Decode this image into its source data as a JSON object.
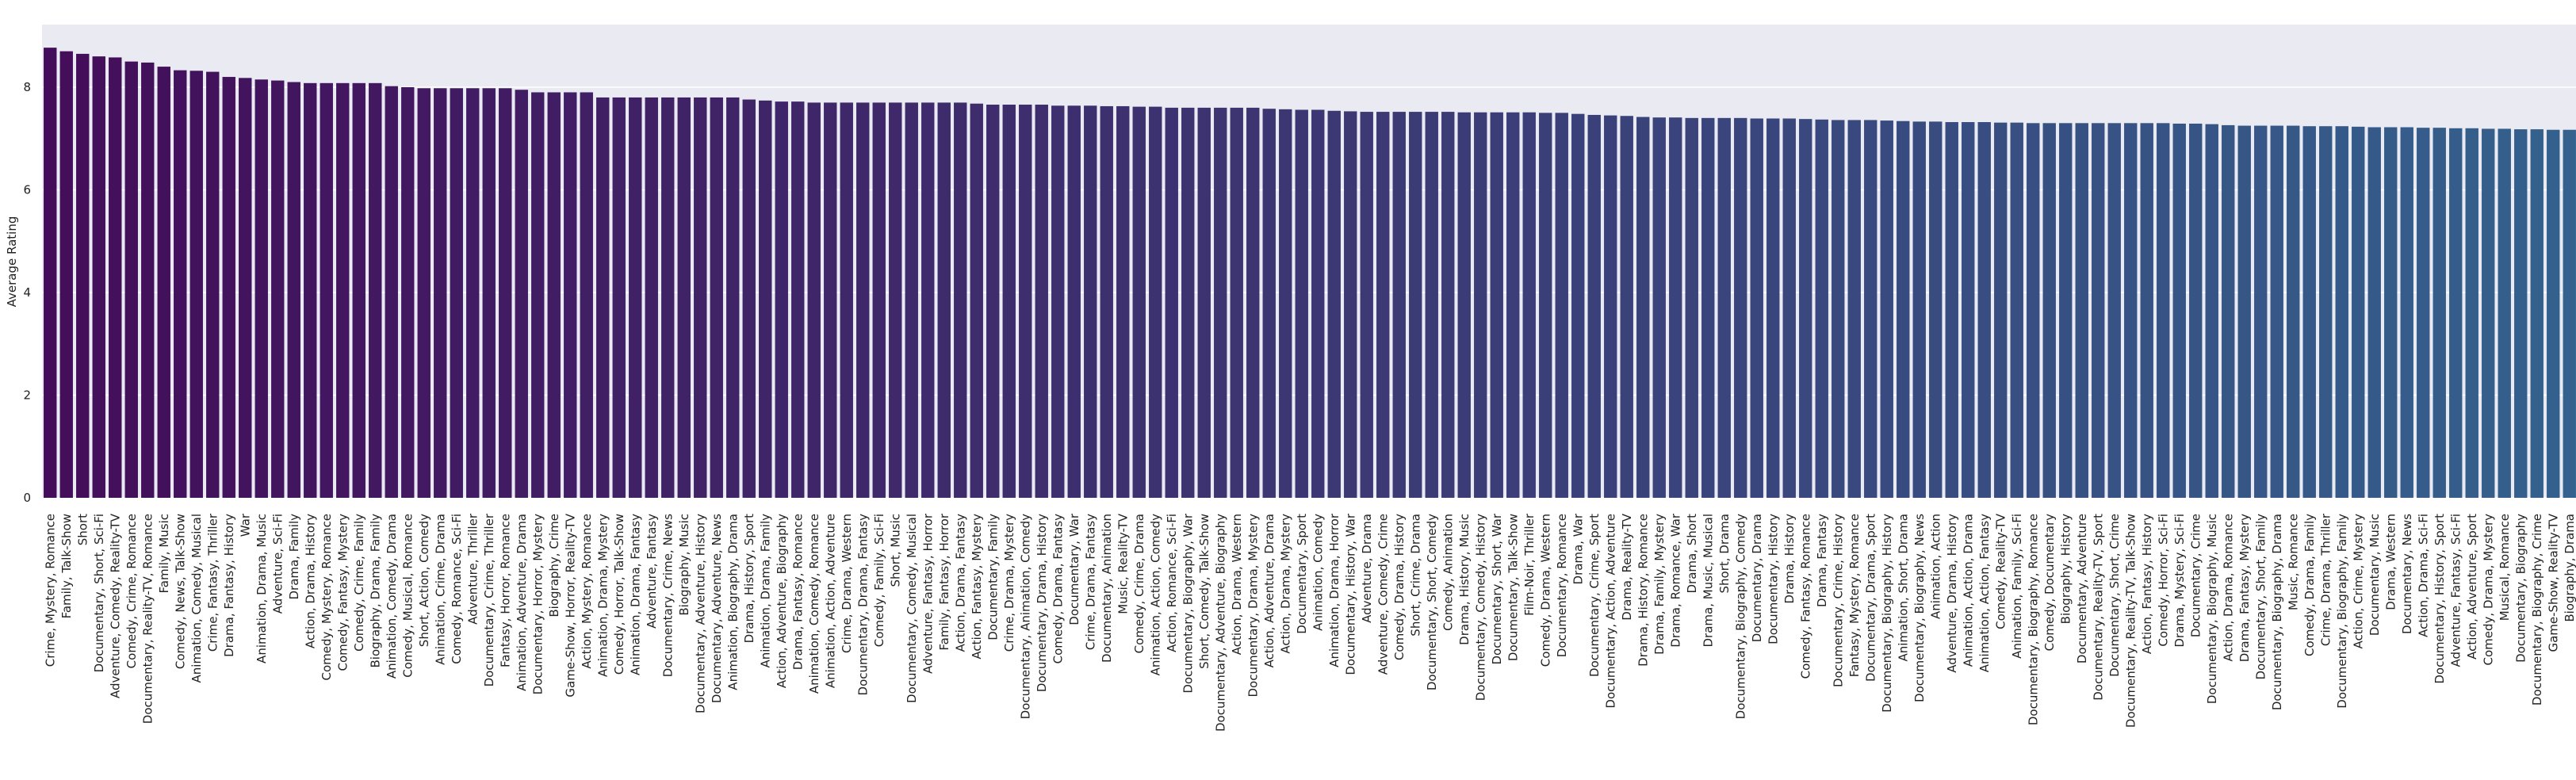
{
  "chart_data": {
    "type": "bar",
    "y_label": "Average Rating",
    "categories": [
      "Crime, Mystery, Romance",
      "Family, Talk-Show",
      "Short",
      "Documentary, Short, Sci-Fi",
      "Adventure, Comedy, Reality-TV",
      "Comedy, Crime, Romance",
      "Documentary, Reality-TV, Romance",
      "Family, Music",
      "Comedy, News, Talk-Show",
      "Animation, Comedy, Musical",
      "Crime, Fantasy, Thriller",
      "Drama, Fantasy, History",
      "War",
      "Animation, Drama, Music",
      "Adventure, Sci-Fi",
      "Drama, Family",
      "Action, Drama, History",
      "Comedy, Mystery, Romance",
      "Comedy, Fantasy, Mystery",
      "Comedy, Crime, Family",
      "Biography, Drama, Family",
      "Animation, Comedy, Drama",
      "Comedy, Musical, Romance",
      "Short, Action, Comedy",
      "Animation, Crime, Drama",
      "Comedy, Romance, Sci-Fi",
      "Adventure, Thriller",
      "Documentary, Crime, Thriller",
      "Fantasy, Horror, Romance",
      "Animation, Adventure, Drama",
      "Documentary, Horror, Mystery",
      "Biography, Crime",
      "Game-Show, Horror, Reality-TV",
      "Action, Mystery, Romance",
      "Animation, Drama, Mystery",
      "Comedy, Horror, Talk-Show",
      "Animation, Drama, Fantasy",
      "Adventure, Fantasy",
      "Documentary, Crime, News",
      "Biography, Music",
      "Documentary, Adventure, History",
      "Documentary, Adventure, News",
      "Animation, Biography, Drama",
      "Drama, History, Sport",
      "Animation, Drama, Family",
      "Action, Adventure, Biography",
      "Drama, Fantasy, Romance",
      "Animation, Comedy, Romance",
      "Animation, Action, Adventure",
      "Crime, Drama, Western",
      "Documentary, Drama, Fantasy",
      "Comedy, Family, Sci-Fi",
      "Short, Music",
      "Documentary, Comedy, Musical",
      "Adventure, Fantasy, Horror",
      "Family, Fantasy, Horror",
      "Action, Drama, Fantasy",
      "Action, Fantasy, Mystery",
      "Documentary, Family",
      "Crime, Drama, Mystery",
      "Documentary, Animation, Comedy",
      "Documentary, Drama, History",
      "Comedy, Drama, Fantasy",
      "Documentary, War",
      "Crime, Drama, Fantasy",
      "Documentary, Animation",
      "Music, Reality-TV",
      "Comedy, Crime, Drama",
      "Animation, Action, Comedy",
      "Action, Romance, Sci-Fi",
      "Documentary, Biography, War",
      "Short, Comedy, Talk-Show",
      "Documentary, Adventure, Biography",
      "Action, Drama, Western",
      "Documentary, Drama, Mystery",
      "Action, Adventure, Drama",
      "Action, Drama, Mystery",
      "Documentary, Sport",
      "Animation, Comedy",
      "Animation, Drama, Horror",
      "Documentary, History, War",
      "Adventure, Drama",
      "Adventure, Comedy, Crime",
      "Comedy, Drama, History",
      "Short, Crime, Drama",
      "Documentary, Short, Comedy",
      "Comedy, Animation",
      "Drama, History, Music",
      "Documentary, Comedy, History",
      "Documentary, Short, War",
      "Documentary, Talk-Show",
      "Film-Noir, Thriller",
      "Comedy, Drama, Western",
      "Documentary, Romance",
      "Drama, War",
      "Documentary, Crime, Sport",
      "Documentary, Action, Adventure",
      "Drama, Reality-TV",
      "Drama, History, Romance",
      "Drama, Family, Mystery",
      "Drama, Romance, War",
      "Drama, Short",
      "Drama, Music, Musical",
      "Short, Drama",
      "Documentary, Biography, Comedy",
      "Documentary, Drama",
      "Documentary, History",
      "Drama, History",
      "Comedy, Fantasy, Romance",
      "Drama, Fantasy",
      "Documentary, Crime, History",
      "Fantasy, Mystery, Romance",
      "Documentary, Drama, Sport",
      "Documentary, Biography, History",
      "Animation, Short, Drama",
      "Documentary, Biography, News",
      "Animation, Action",
      "Adventure, Drama, History",
      "Animation, Action, Drama",
      "Animation, Action, Fantasy",
      "Comedy, Reality-TV",
      "Animation, Family, Sci-Fi",
      "Documentary, Biography, Romance",
      "Comedy, Documentary",
      "Biography, History",
      "Documentary, Adventure",
      "Documentary, Reality-TV, Sport",
      "Documentary, Short, Crime",
      "Documentary, Reality-TV, Talk-Show",
      "Action, Fantasy, History",
      "Comedy, Horror, Sci-Fi",
      "Drama, Mystery, Sci-Fi",
      "Documentary, Crime",
      "Documentary, Biography, Music",
      "Action, Drama, Romance",
      "Drama, Fantasy, Mystery",
      "Documentary, Short, Family",
      "Documentary, Biography, Drama",
      "Music, Romance",
      "Comedy, Drama, Family",
      "Crime, Drama, Thriller",
      "Documentary, Biography, Family",
      "Action, Crime, Mystery",
      "Documentary, Music",
      "Drama, Western",
      "Documentary, News",
      "Action, Drama, Sci-Fi",
      "Documentary, History, Sport",
      "Adventure, Fantasy, Sci-Fi",
      "Action, Adventure, Sport",
      "Comedy, Drama, Mystery",
      "Musical, Romance",
      "Documentary, Biography",
      "Documentary, Biography, Crime",
      "Game-Show, Reality-TV",
      "Biography, Drama"
    ],
    "values": [
      8.77,
      8.7,
      8.65,
      8.6,
      8.58,
      8.5,
      8.48,
      8.4,
      8.33,
      8.32,
      8.3,
      8.2,
      8.18,
      8.15,
      8.13,
      8.1,
      8.08,
      8.08,
      8.08,
      8.08,
      8.08,
      8.02,
      8.0,
      7.98,
      7.98,
      7.98,
      7.98,
      7.98,
      7.98,
      7.95,
      7.9,
      7.9,
      7.9,
      7.9,
      7.8,
      7.8,
      7.8,
      7.8,
      7.8,
      7.8,
      7.8,
      7.8,
      7.8,
      7.76,
      7.74,
      7.72,
      7.72,
      7.7,
      7.7,
      7.7,
      7.7,
      7.7,
      7.7,
      7.7,
      7.7,
      7.7,
      7.7,
      7.68,
      7.66,
      7.66,
      7.66,
      7.66,
      7.64,
      7.64,
      7.64,
      7.63,
      7.63,
      7.62,
      7.62,
      7.6,
      7.6,
      7.6,
      7.6,
      7.6,
      7.6,
      7.58,
      7.57,
      7.56,
      7.56,
      7.54,
      7.53,
      7.52,
      7.52,
      7.52,
      7.52,
      7.52,
      7.52,
      7.51,
      7.51,
      7.51,
      7.51,
      7.51,
      7.5,
      7.5,
      7.48,
      7.46,
      7.45,
      7.44,
      7.42,
      7.41,
      7.41,
      7.4,
      7.4,
      7.4,
      7.4,
      7.39,
      7.39,
      7.39,
      7.38,
      7.37,
      7.36,
      7.36,
      7.36,
      7.35,
      7.34,
      7.33,
      7.33,
      7.32,
      7.32,
      7.32,
      7.31,
      7.31,
      7.3,
      7.3,
      7.3,
      7.3,
      7.3,
      7.3,
      7.3,
      7.3,
      7.3,
      7.29,
      7.29,
      7.28,
      7.26,
      7.25,
      7.25,
      7.25,
      7.25,
      7.24,
      7.24,
      7.24,
      7.23,
      7.22,
      7.22,
      7.22,
      7.21,
      7.21,
      7.2,
      7.2,
      7.19,
      7.19,
      7.18,
      7.18,
      7.17,
      7.17
    ],
    "palette": [
      "#440d5a",
      "#34618d"
    ],
    "ylim": [
      0,
      9.22
    ],
    "yticks": [
      0,
      2,
      4,
      6,
      8
    ],
    "grid": true
  }
}
